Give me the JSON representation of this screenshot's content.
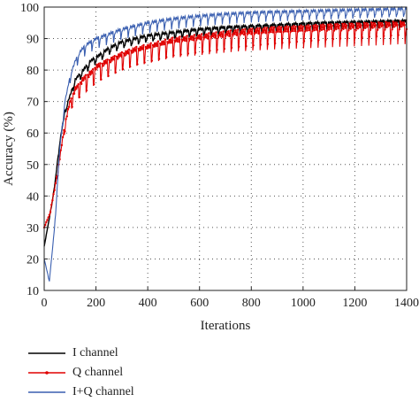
{
  "chart_data": {
    "type": "line",
    "xlabel": "Iterations",
    "ylabel": "Accuracy (%)",
    "xlim": [
      0,
      1400
    ],
    "ylim": [
      10,
      100
    ],
    "xticks": [
      0,
      200,
      400,
      600,
      800,
      1000,
      1200,
      1400
    ],
    "yticks": [
      10,
      20,
      30,
      40,
      50,
      60,
      70,
      80,
      90,
      100
    ],
    "grid": "dotted",
    "legend_position": "bottom",
    "x": [
      0,
      20,
      40,
      60,
      80,
      100,
      120,
      140,
      160,
      180,
      200,
      250,
      300,
      350,
      400,
      450,
      500,
      550,
      600,
      650,
      700,
      750,
      800,
      850,
      900,
      950,
      1000,
      1050,
      1100,
      1150,
      1200,
      1250,
      1300,
      1350,
      1400
    ],
    "series": [
      {
        "name": "I channel",
        "color": "#000000",
        "marker": "none",
        "values": [
          24,
          33,
          43,
          57,
          67,
          72,
          77,
          79,
          81,
          83,
          84,
          87,
          89,
          90,
          91,
          91.5,
          92,
          92.5,
          93,
          93.3,
          93.6,
          93.8,
          94,
          94.2,
          94.4,
          94.6,
          94.8,
          95,
          95.1,
          95.2,
          95.3,
          95.4,
          95.5,
          95.6,
          95.7
        ],
        "osc_amplitude": 1.5
      },
      {
        "name": "Q channel",
        "color": "#e00000",
        "marker": "dot",
        "values": [
          30,
          34,
          42,
          52,
          63,
          70,
          74,
          76,
          78,
          79,
          81,
          83,
          85,
          86.5,
          87.5,
          88.5,
          89.5,
          90,
          90.5,
          91,
          91.5,
          92,
          92.3,
          92.6,
          92.9,
          93.1,
          93.3,
          93.5,
          93.7,
          93.9,
          94,
          94.2,
          94.3,
          94.5,
          94.6
        ],
        "osc_amplitude": 3.5
      },
      {
        "name": "I+Q channel",
        "color": "#3a5fb0",
        "marker": "none",
        "values": [
          20,
          13,
          30,
          55,
          70,
          78,
          83,
          86,
          88,
          89,
          90,
          91.5,
          93,
          94,
          95,
          95.7,
          96.3,
          96.8,
          97.2,
          97.5,
          97.8,
          98,
          98.2,
          98.4,
          98.5,
          98.6,
          98.7,
          98.8,
          98.9,
          99,
          99.1,
          99.2,
          99.3,
          99.4,
          99.5
        ],
        "osc_amplitude": 1.8
      }
    ]
  }
}
